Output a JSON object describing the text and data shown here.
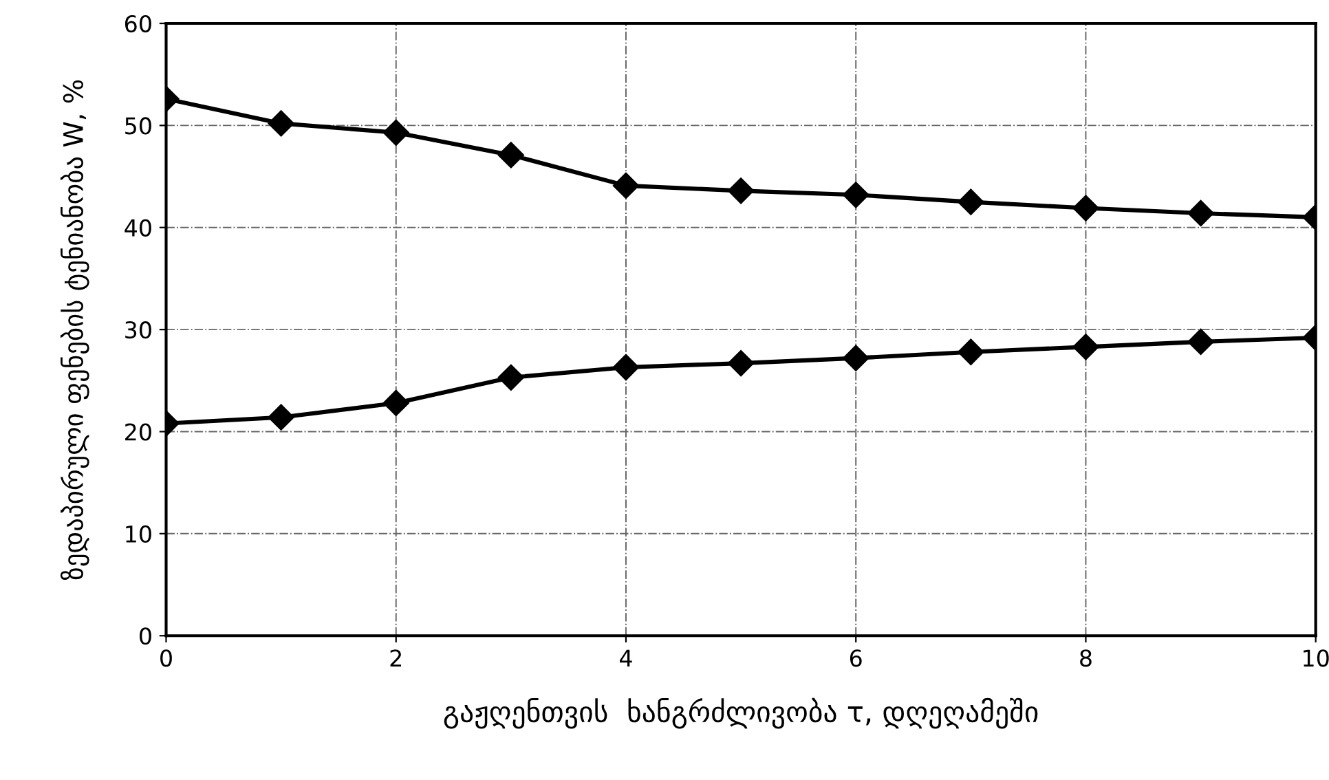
{
  "chart_data": {
    "type": "line",
    "xlabel": "გაჟღენთვის  ხანგრძლივობა τ, დღეღამეში",
    "ylabel": "ზედაპირული ფენების ტენიანობა W, %",
    "x": [
      0,
      1,
      2,
      3,
      4,
      5,
      6,
      7,
      8,
      9,
      10
    ],
    "series": [
      {
        "color": "#000000",
        "values": [
          52.6,
          50.2,
          49.3,
          47.1,
          44.1,
          43.6,
          43.2,
          42.5,
          41.9,
          41.4,
          41.0
        ]
      },
      {
        "color": "#000000",
        "values": [
          20.8,
          21.4,
          22.8,
          25.3,
          26.3,
          26.7,
          27.2,
          27.8,
          28.3,
          28.8,
          29.2
        ]
      }
    ],
    "xlim": [
      0,
      10
    ],
    "xticks": [
      0,
      2,
      4,
      6,
      8,
      10
    ],
    "ylim": [
      0,
      60
    ],
    "yticks": [
      0,
      10,
      20,
      30,
      40,
      50,
      60
    ],
    "grid": true,
    "marker": "diamond",
    "line_style": "solid",
    "legend": false
  }
}
